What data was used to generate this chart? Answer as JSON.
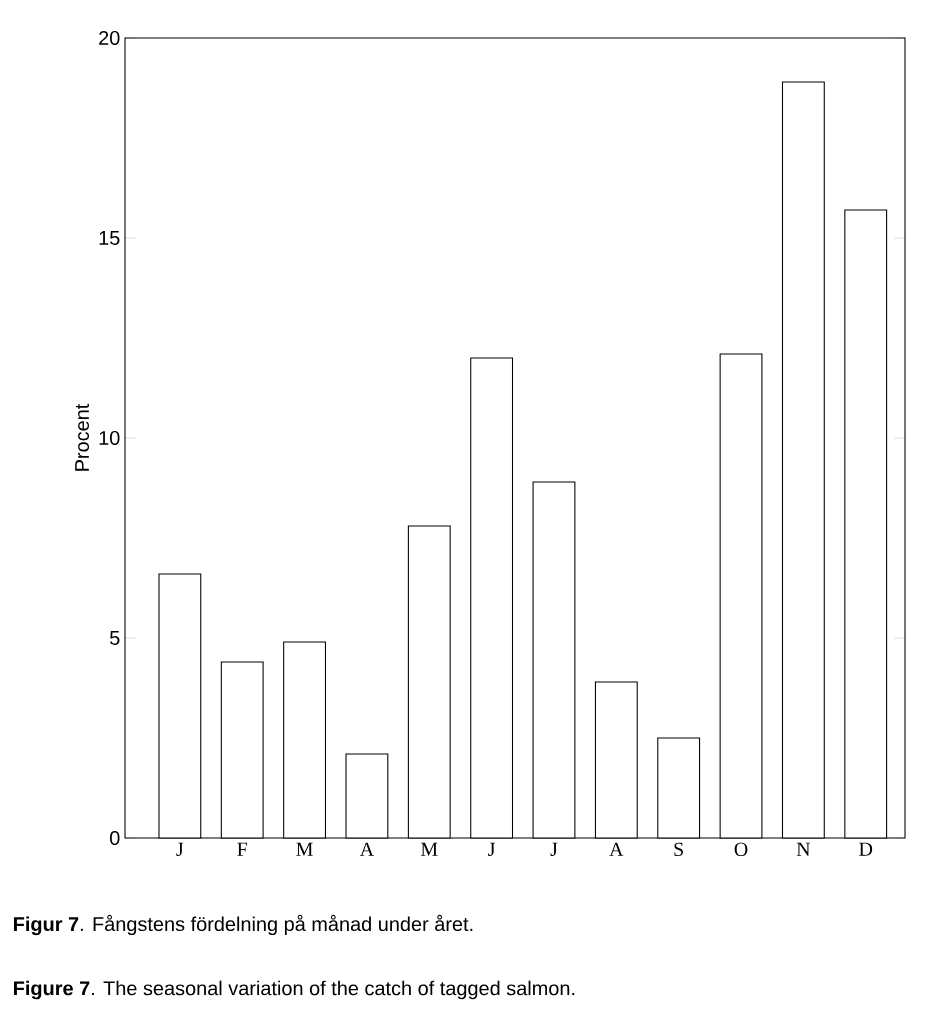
{
  "chart_data": {
    "type": "bar",
    "ylabel": "Procent",
    "categories": [
      "J",
      "F",
      "M",
      "A",
      "M",
      "J",
      "J",
      "A",
      "S",
      "O",
      "N",
      "D"
    ],
    "values": [
      6.6,
      4.4,
      4.9,
      2.1,
      7.8,
      12.0,
      8.9,
      3.9,
      2.5,
      12.1,
      18.9,
      15.7
    ],
    "color": "#000000",
    "ylim": [
      0,
      20
    ],
    "yticks": [
      0,
      5,
      10,
      15,
      20
    ],
    "grid": false,
    "annotations": [
      "**Figur 7**. Fångstens fördelning på månad under året.",
      "**Figure 7**. The seasonal variation of the catch of tagged salmon."
    ]
  }
}
